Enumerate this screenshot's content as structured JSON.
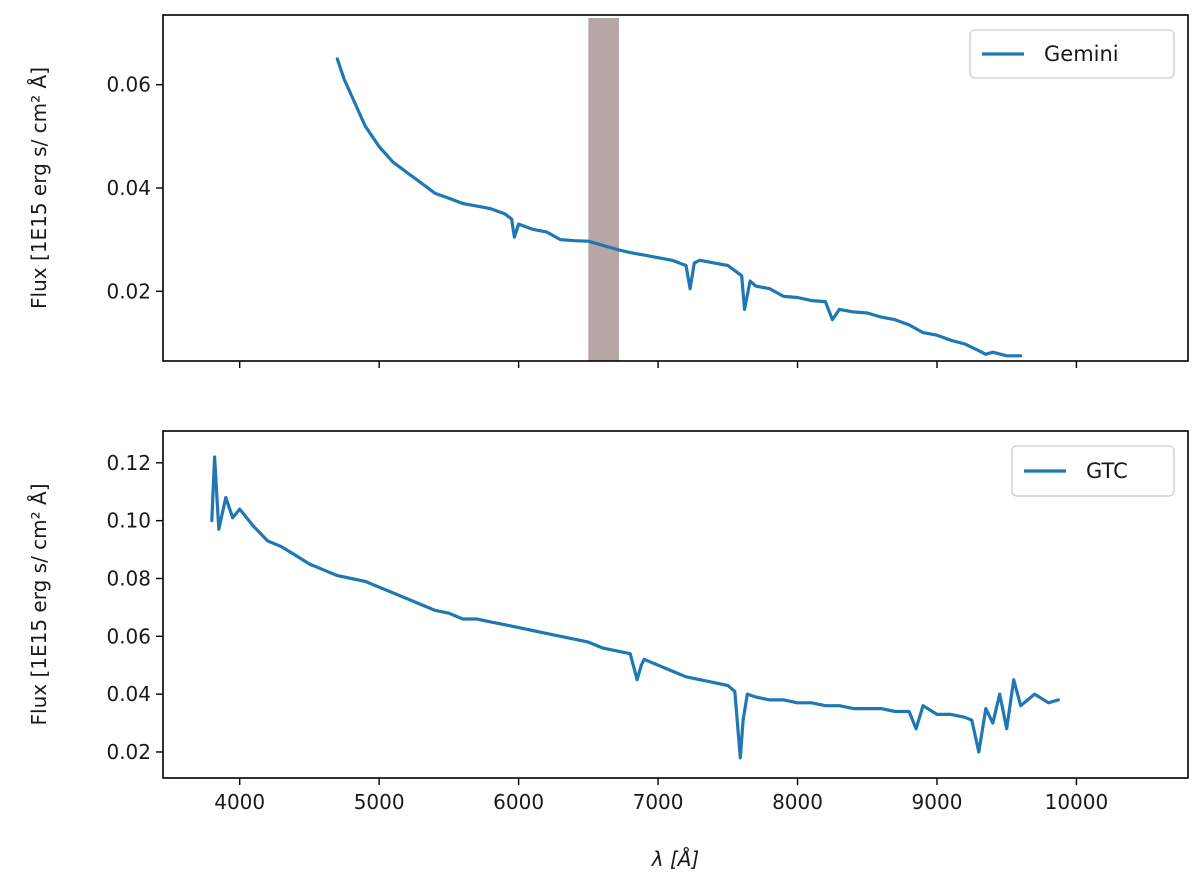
{
  "chart_data": [
    {
      "type": "line",
      "xlim": [
        3450,
        10800
      ],
      "ylim": [
        0.0065,
        0.0735
      ],
      "yticks": [
        0.02,
        0.04,
        0.06
      ],
      "ytick_labels": [
        "0.02",
        "0.04",
        "0.06"
      ],
      "xticks": [
        4000,
        5000,
        6000,
        7000,
        8000,
        9000,
        10000
      ],
      "show_xtick_labels": false,
      "ylabel": "Flux [1E15 erg s/ cm² Å]",
      "legend": {
        "position": "top-right",
        "entries": [
          "Gemini"
        ]
      },
      "shaded_region": {
        "x": [
          6500,
          6720
        ],
        "color": "#b7a6a6"
      },
      "series": [
        {
          "name": "Gemini",
          "color": "#1f77b4",
          "x": [
            4700,
            4750,
            4800,
            4850,
            4900,
            4950,
            5000,
            5100,
            5200,
            5300,
            5400,
            5500,
            5600,
            5700,
            5800,
            5900,
            5950,
            5970,
            6000,
            6100,
            6200,
            6300,
            6400,
            6500,
            6720,
            6800,
            6900,
            7000,
            7100,
            7200,
            7230,
            7260,
            7300,
            7400,
            7500,
            7550,
            7600,
            7620,
            7660,
            7700,
            7800,
            7900,
            8000,
            8100,
            8200,
            8250,
            8300,
            8400,
            8500,
            8600,
            8700,
            8800,
            8900,
            9000,
            9100,
            9200,
            9300,
            9350,
            9400,
            9500,
            9600
          ],
          "y": [
            0.065,
            0.061,
            0.058,
            0.055,
            0.052,
            0.05,
            0.048,
            0.045,
            0.043,
            0.041,
            0.039,
            0.038,
            0.037,
            0.0365,
            0.036,
            0.035,
            0.034,
            0.0305,
            0.033,
            0.032,
            0.0315,
            0.03,
            0.0298,
            0.0297,
            0.028,
            0.0275,
            0.027,
            0.0265,
            0.026,
            0.025,
            0.0205,
            0.0255,
            0.026,
            0.0255,
            0.025,
            0.024,
            0.023,
            0.0165,
            0.022,
            0.021,
            0.0205,
            0.019,
            0.0188,
            0.0182,
            0.018,
            0.0145,
            0.0165,
            0.016,
            0.0158,
            0.015,
            0.0145,
            0.0135,
            0.012,
            0.0115,
            0.0105,
            0.0098,
            0.0085,
            0.0078,
            0.0082,
            0.0075,
            0.0075
          ]
        }
      ]
    },
    {
      "type": "line",
      "xlim": [
        3450,
        10800
      ],
      "ylim": [
        0.011,
        0.131
      ],
      "yticks": [
        0.02,
        0.04,
        0.06,
        0.08,
        0.1,
        0.12
      ],
      "ytick_labels": [
        "0.02",
        "0.04",
        "0.06",
        "0.08",
        "0.10",
        "0.12"
      ],
      "xticks": [
        4000,
        5000,
        6000,
        7000,
        8000,
        9000,
        10000
      ],
      "xtick_labels": [
        "4000",
        "5000",
        "6000",
        "7000",
        "8000",
        "9000",
        "10000"
      ],
      "show_xtick_labels": true,
      "xlabel": "λ [Å]",
      "ylabel": "Flux [1E15 erg s/ cm² Å]",
      "legend": {
        "position": "top-right",
        "entries": [
          "GTC"
        ]
      },
      "series": [
        {
          "name": "GTC",
          "color": "#1f77b4",
          "x": [
            3800,
            3820,
            3850,
            3900,
            3950,
            4000,
            4100,
            4200,
            4300,
            4400,
            4500,
            4600,
            4700,
            4800,
            4900,
            5000,
            5100,
            5200,
            5300,
            5400,
            5500,
            5600,
            5700,
            5800,
            5900,
            6000,
            6100,
            6200,
            6300,
            6400,
            6500,
            6600,
            6700,
            6800,
            6850,
            6880,
            6900,
            7000,
            7100,
            7200,
            7300,
            7400,
            7500,
            7550,
            7590,
            7610,
            7640,
            7700,
            7800,
            7900,
            8000,
            8100,
            8200,
            8300,
            8400,
            8500,
            8600,
            8700,
            8800,
            8850,
            8900,
            9000,
            9100,
            9200,
            9250,
            9300,
            9350,
            9400,
            9450,
            9500,
            9550,
            9600,
            9700,
            9800,
            9870
          ],
          "y": [
            0.1,
            0.122,
            0.097,
            0.108,
            0.101,
            0.104,
            0.098,
            0.093,
            0.091,
            0.088,
            0.085,
            0.083,
            0.081,
            0.08,
            0.079,
            0.077,
            0.075,
            0.073,
            0.071,
            0.069,
            0.068,
            0.066,
            0.066,
            0.065,
            0.064,
            0.063,
            0.062,
            0.061,
            0.06,
            0.059,
            0.058,
            0.056,
            0.055,
            0.054,
            0.045,
            0.05,
            0.052,
            0.05,
            0.048,
            0.046,
            0.045,
            0.044,
            0.043,
            0.041,
            0.018,
            0.031,
            0.04,
            0.039,
            0.038,
            0.038,
            0.037,
            0.037,
            0.036,
            0.036,
            0.035,
            0.035,
            0.035,
            0.034,
            0.034,
            0.028,
            0.036,
            0.033,
            0.033,
            0.032,
            0.031,
            0.02,
            0.035,
            0.03,
            0.04,
            0.028,
            0.045,
            0.036,
            0.04,
            0.037,
            0.038
          ]
        }
      ]
    }
  ]
}
